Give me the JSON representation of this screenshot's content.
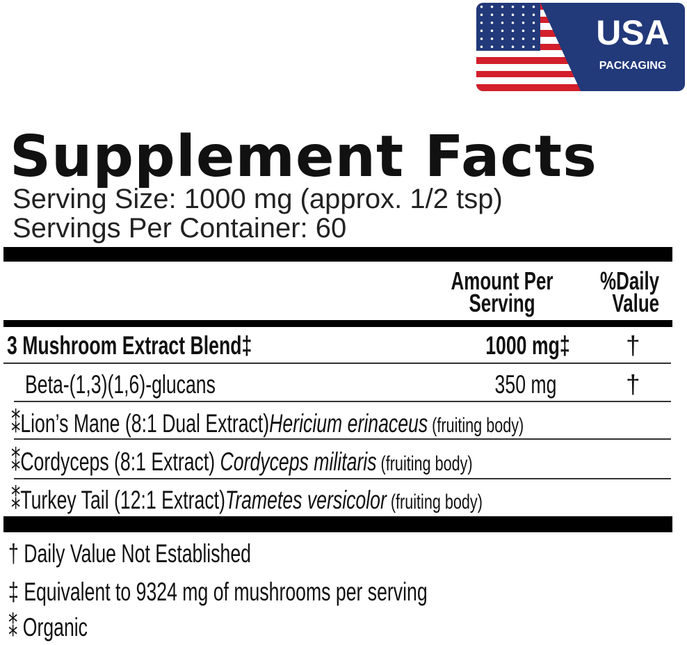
{
  "badge": {
    "title": "USA",
    "subtitle": "PACKAGING",
    "colors": {
      "blue": "#22397a",
      "red": "#d21f2b"
    }
  },
  "label": {
    "title": "Supplement Facts",
    "serving_size": "Serving Size: 1000 mg (approx. 1/2 tsp)",
    "servings_per_container": "Servings Per Container: 60",
    "header": {
      "amount_line1": "Amount Per",
      "amount_line2": "Serving",
      "dv_line1": "%Daily",
      "dv_line2": "Value"
    },
    "rows": [
      {
        "name": "3 Mushroom Extract Blend‡",
        "amount": "1000 mg‡",
        "dv": "†"
      },
      {
        "name": "Beta-(1,3)(1,6)-glucans",
        "amount": "350 mg",
        "dv": "†"
      }
    ],
    "ingredients": [
      {
        "mark": "⁑",
        "name": "Lion’s Mane (8:1 Dual Extract)",
        "latin": "Hericium erinaceus",
        "part": " (fruiting body)"
      },
      {
        "mark": "⁑",
        "name": "Cordyceps (8:1 Extract) ",
        "latin": "Cordyceps militaris",
        "part": " (fruiting body)"
      },
      {
        "mark": "⁑",
        "name": "Turkey Tail (12:1 Extract)",
        "latin": "Trametes versicolor",
        "part": " (fruiting body)"
      }
    ],
    "footnotes": [
      "† Daily Value Not Established",
      "‡ Equivalent to 9324 mg of mushrooms per serving",
      "⁑ Organic"
    ]
  }
}
